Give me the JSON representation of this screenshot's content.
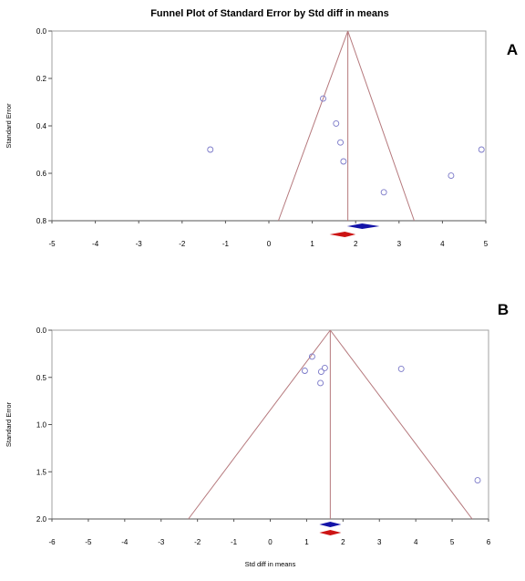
{
  "title": "Funnel Plot of Standard Error by Std diff in means",
  "colors": {
    "funnel": "#b5787c",
    "points": "#7a78c8",
    "frame": "#a0a0a0",
    "diamond_blue": "#1414a8",
    "diamond_red": "#cc1414"
  },
  "chart_data": [
    {
      "type": "scatter",
      "panel_label": "A",
      "ylabel": "Standard Error",
      "xlabel": "",
      "xlim": [
        -5,
        5
      ],
      "ylim": [
        0.0,
        0.8
      ],
      "y_inverted": true,
      "xticks": [
        "-5",
        "-4",
        "-3",
        "-2",
        "-1",
        "0",
        "1",
        "2",
        "3",
        "4",
        "5"
      ],
      "yticks": [
        "0.0",
        "0.2",
        "0.4",
        "0.6",
        "0.8"
      ],
      "points": [
        {
          "x": -1.35,
          "y": 0.5
        },
        {
          "x": 1.25,
          "y": 0.285
        },
        {
          "x": 1.55,
          "y": 0.39
        },
        {
          "x": 1.65,
          "y": 0.47
        },
        {
          "x": 1.72,
          "y": 0.55
        },
        {
          "x": 2.65,
          "y": 0.68
        },
        {
          "x": 4.2,
          "y": 0.61
        },
        {
          "x": 4.9,
          "y": 0.5
        }
      ],
      "funnel_apex": 1.82,
      "funnel_base": [
        0.22,
        3.35
      ],
      "diamonds": [
        {
          "color": "blue",
          "center": 2.15,
          "low": 1.8,
          "high": 2.55
        },
        {
          "color": "red",
          "center": 1.75,
          "low": 1.4,
          "high": 2.0
        }
      ]
    },
    {
      "type": "scatter",
      "panel_label": "B",
      "ylabel": "Standard Error",
      "xlabel": "Std diff in means",
      "xlim": [
        -6,
        6
      ],
      "ylim": [
        0.0,
        2.0
      ],
      "y_inverted": true,
      "xticks": [
        "-6",
        "-5",
        "-4",
        "-3",
        "-2",
        "-1",
        "0",
        "1",
        "2",
        "3",
        "4",
        "5",
        "6"
      ],
      "yticks": [
        "0.0",
        "0.5",
        "1.0",
        "1.5",
        "2.0"
      ],
      "points": [
        {
          "x": 1.15,
          "y": 0.28
        },
        {
          "x": 0.95,
          "y": 0.43
        },
        {
          "x": 1.4,
          "y": 0.44
        },
        {
          "x": 1.5,
          "y": 0.4
        },
        {
          "x": 1.38,
          "y": 0.56
        },
        {
          "x": 3.6,
          "y": 0.41
        },
        {
          "x": 5.7,
          "y": 1.59
        }
      ],
      "funnel_apex": 1.65,
      "funnel_base": [
        -2.25,
        5.55
      ],
      "diamonds": [
        {
          "color": "blue",
          "center": 1.65,
          "low": 1.35,
          "high": 1.95
        },
        {
          "color": "red",
          "center": 1.65,
          "low": 1.35,
          "high": 1.95
        }
      ]
    }
  ]
}
